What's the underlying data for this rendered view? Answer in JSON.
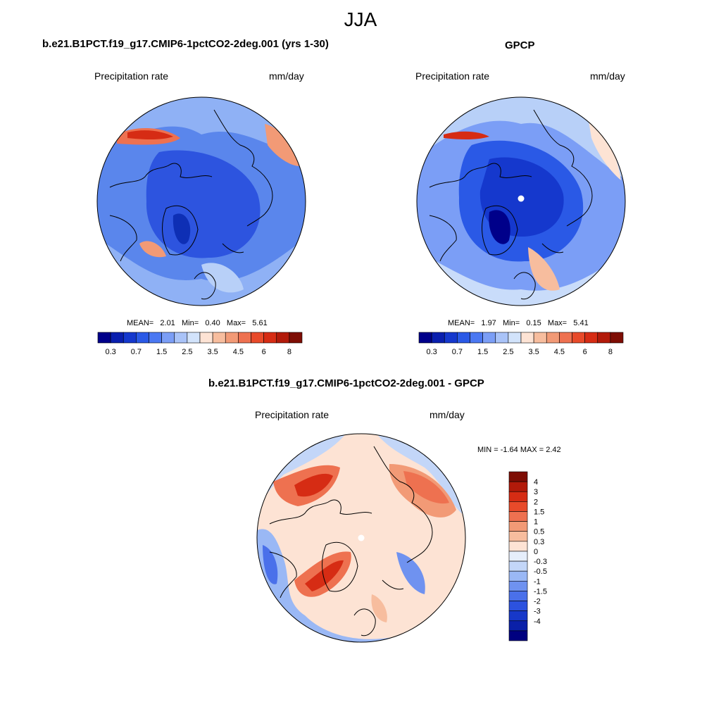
{
  "figure_title": "JJA",
  "chart_data": [
    {
      "type": "heatmap",
      "panel": "model",
      "title": "b.e21.B1PCT.f19_g17.CMIP6-1pctCO2-2deg.001 (yrs 1-30)",
      "left_label": "Precipitation rate",
      "right_label": "mm/day",
      "projection": "polar stereographic (north pole)",
      "stats": {
        "mean": "2.01",
        "min": "0.40",
        "max": "5.61"
      },
      "stats_text": {
        "mean_label": "MEAN=",
        "min_label": "Min=",
        "max_label": "Max="
      },
      "colorbar": {
        "orientation": "horizontal",
        "levels": [
          0.2,
          0.3,
          0.5,
          0.7,
          1,
          1.5,
          2,
          2.5,
          3,
          3.5,
          4,
          4.5,
          5,
          6,
          7,
          8
        ],
        "tick_labels": [
          "0.3",
          "0.7",
          "1.5",
          "2.5",
          "3.5",
          "4.5",
          "6",
          "8"
        ],
        "colors": [
          "#00008a",
          "#0a1fae",
          "#1538cd",
          "#2a59e6",
          "#4b78f2",
          "#7b9ef6",
          "#a9c3f8",
          "#d2e3fb",
          "#fde3d4",
          "#f7bd9e",
          "#f29a76",
          "#ee7150",
          "#e84a2a",
          "#d62c14",
          "#b21a0a",
          "#7e0d04"
        ]
      }
    },
    {
      "type": "heatmap",
      "panel": "observations",
      "title": "GPCP",
      "left_label": "Precipitation rate",
      "right_label": "mm/day",
      "projection": "polar stereographic (north pole)",
      "stats": {
        "mean": "1.97",
        "min": "0.15",
        "max": "5.41"
      },
      "stats_text": {
        "mean_label": "MEAN=",
        "min_label": "Min=",
        "max_label": "Max="
      },
      "colorbar": {
        "orientation": "horizontal",
        "levels": [
          0.2,
          0.3,
          0.5,
          0.7,
          1,
          1.5,
          2,
          2.5,
          3,
          3.5,
          4,
          4.5,
          5,
          6,
          7,
          8
        ],
        "tick_labels": [
          "0.3",
          "0.7",
          "1.5",
          "2.5",
          "3.5",
          "4.5",
          "6",
          "8"
        ],
        "colors": [
          "#00008a",
          "#0a1fae",
          "#1538cd",
          "#2a59e6",
          "#4b78f2",
          "#7b9ef6",
          "#a9c3f8",
          "#d2e3fb",
          "#fde3d4",
          "#f7bd9e",
          "#f29a76",
          "#ee7150",
          "#e84a2a",
          "#d62c14",
          "#b21a0a",
          "#7e0d04"
        ]
      }
    },
    {
      "type": "heatmap",
      "panel": "difference",
      "title": "b.e21.B1PCT.f19_g17.CMIP6-1pctCO2-2deg.001 - GPCP",
      "left_label": "Precipitation rate",
      "right_label": "mm/day",
      "projection": "polar stereographic (north pole)",
      "stats_line": "MIN =  -1.64 MAX =   2.42",
      "stats": {
        "min": "-1.64",
        "max": "2.42"
      },
      "colorbar": {
        "orientation": "vertical",
        "tick_labels": [
          "4",
          "3",
          "2",
          "1.5",
          "1",
          "0.5",
          "0.3",
          "0",
          "-0.3",
          "-0.5",
          "-1",
          "-1.5",
          "-2",
          "-3",
          "-4"
        ],
        "colors": [
          "#7e0d04",
          "#b21a0a",
          "#d62c14",
          "#e84a2a",
          "#ee7150",
          "#f29a76",
          "#f7bd9e",
          "#fde3d4",
          "#e6eefb",
          "#c3d6f8",
          "#9ab8f5",
          "#6f92f0",
          "#4a70ea",
          "#2c52df",
          "#1738c9",
          "#0a20a8",
          "#000080"
        ]
      }
    }
  ]
}
